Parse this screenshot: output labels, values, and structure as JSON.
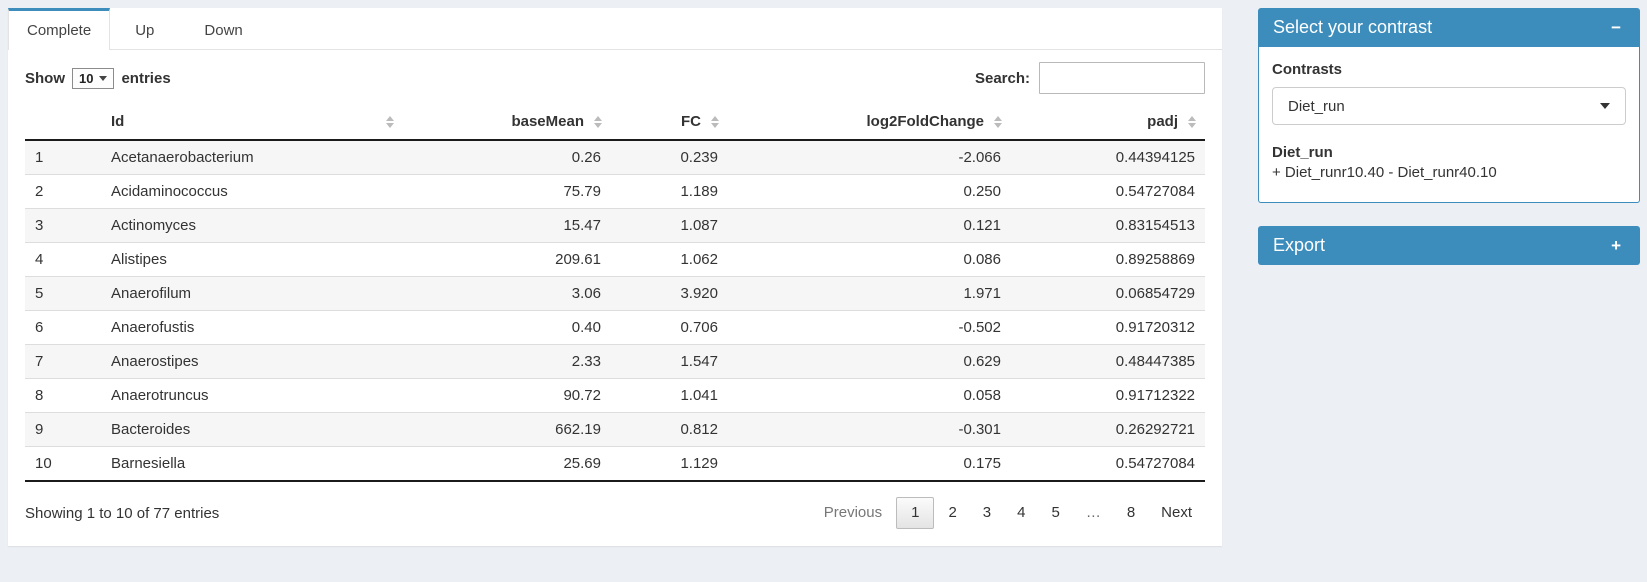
{
  "colors": {
    "accent": "#3c8dbc",
    "page_bg": "#ecf0f5",
    "stripe": "#f6f6f6"
  },
  "tabs": [
    {
      "label": "Complete",
      "active": true
    },
    {
      "label": "Up",
      "active": false
    },
    {
      "label": "Down",
      "active": false
    }
  ],
  "table_controls": {
    "show_label": "Show",
    "page_length": "10",
    "entries_label": "entries",
    "search_label": "Search:",
    "search_value": ""
  },
  "table": {
    "columns": [
      "Id",
      "baseMean",
      "FC",
      "log2FoldChange",
      "padj"
    ],
    "rows": [
      {
        "index": "1",
        "id": "Acetanaerobacterium",
        "baseMean": "0.26",
        "fc": "0.239",
        "log2fc": "-2.066",
        "padj": "0.44394125"
      },
      {
        "index": "2",
        "id": "Acidaminococcus",
        "baseMean": "75.79",
        "fc": "1.189",
        "log2fc": "0.250",
        "padj": "0.54727084"
      },
      {
        "index": "3",
        "id": "Actinomyces",
        "baseMean": "15.47",
        "fc": "1.087",
        "log2fc": "0.121",
        "padj": "0.83154513"
      },
      {
        "index": "4",
        "id": "Alistipes",
        "baseMean": "209.61",
        "fc": "1.062",
        "log2fc": "0.086",
        "padj": "0.89258869"
      },
      {
        "index": "5",
        "id": "Anaerofilum",
        "baseMean": "3.06",
        "fc": "3.920",
        "log2fc": "1.971",
        "padj": "0.06854729"
      },
      {
        "index": "6",
        "id": "Anaerofustis",
        "baseMean": "0.40",
        "fc": "0.706",
        "log2fc": "-0.502",
        "padj": "0.91720312"
      },
      {
        "index": "7",
        "id": "Anaerostipes",
        "baseMean": "2.33",
        "fc": "1.547",
        "log2fc": "0.629",
        "padj": "0.48447385"
      },
      {
        "index": "8",
        "id": "Anaerotruncus",
        "baseMean": "90.72",
        "fc": "1.041",
        "log2fc": "0.058",
        "padj": "0.91712322"
      },
      {
        "index": "9",
        "id": "Bacteroides",
        "baseMean": "662.19",
        "fc": "0.812",
        "log2fc": "-0.301",
        "padj": "0.26292721"
      },
      {
        "index": "10",
        "id": "Barnesiella",
        "baseMean": "25.69",
        "fc": "1.129",
        "log2fc": "0.175",
        "padj": "0.54727084"
      }
    ]
  },
  "footer": {
    "info": "Showing 1 to 10 of 77 entries",
    "pagination": {
      "previous": "Previous",
      "pages": [
        "1",
        "2",
        "3",
        "4",
        "5",
        "…",
        "8"
      ],
      "active_page": "1",
      "next": "Next"
    }
  },
  "contrast_panel": {
    "title": "Select your contrast",
    "collapse_icon": "−",
    "contrasts_label": "Contrasts",
    "selected_contrast": "Diet_run",
    "contrast_name": "Diet_run",
    "contrast_formula": "+ Diet_runr10.40 - Diet_runr40.10"
  },
  "export_panel": {
    "title": "Export",
    "expand_icon": "+"
  }
}
